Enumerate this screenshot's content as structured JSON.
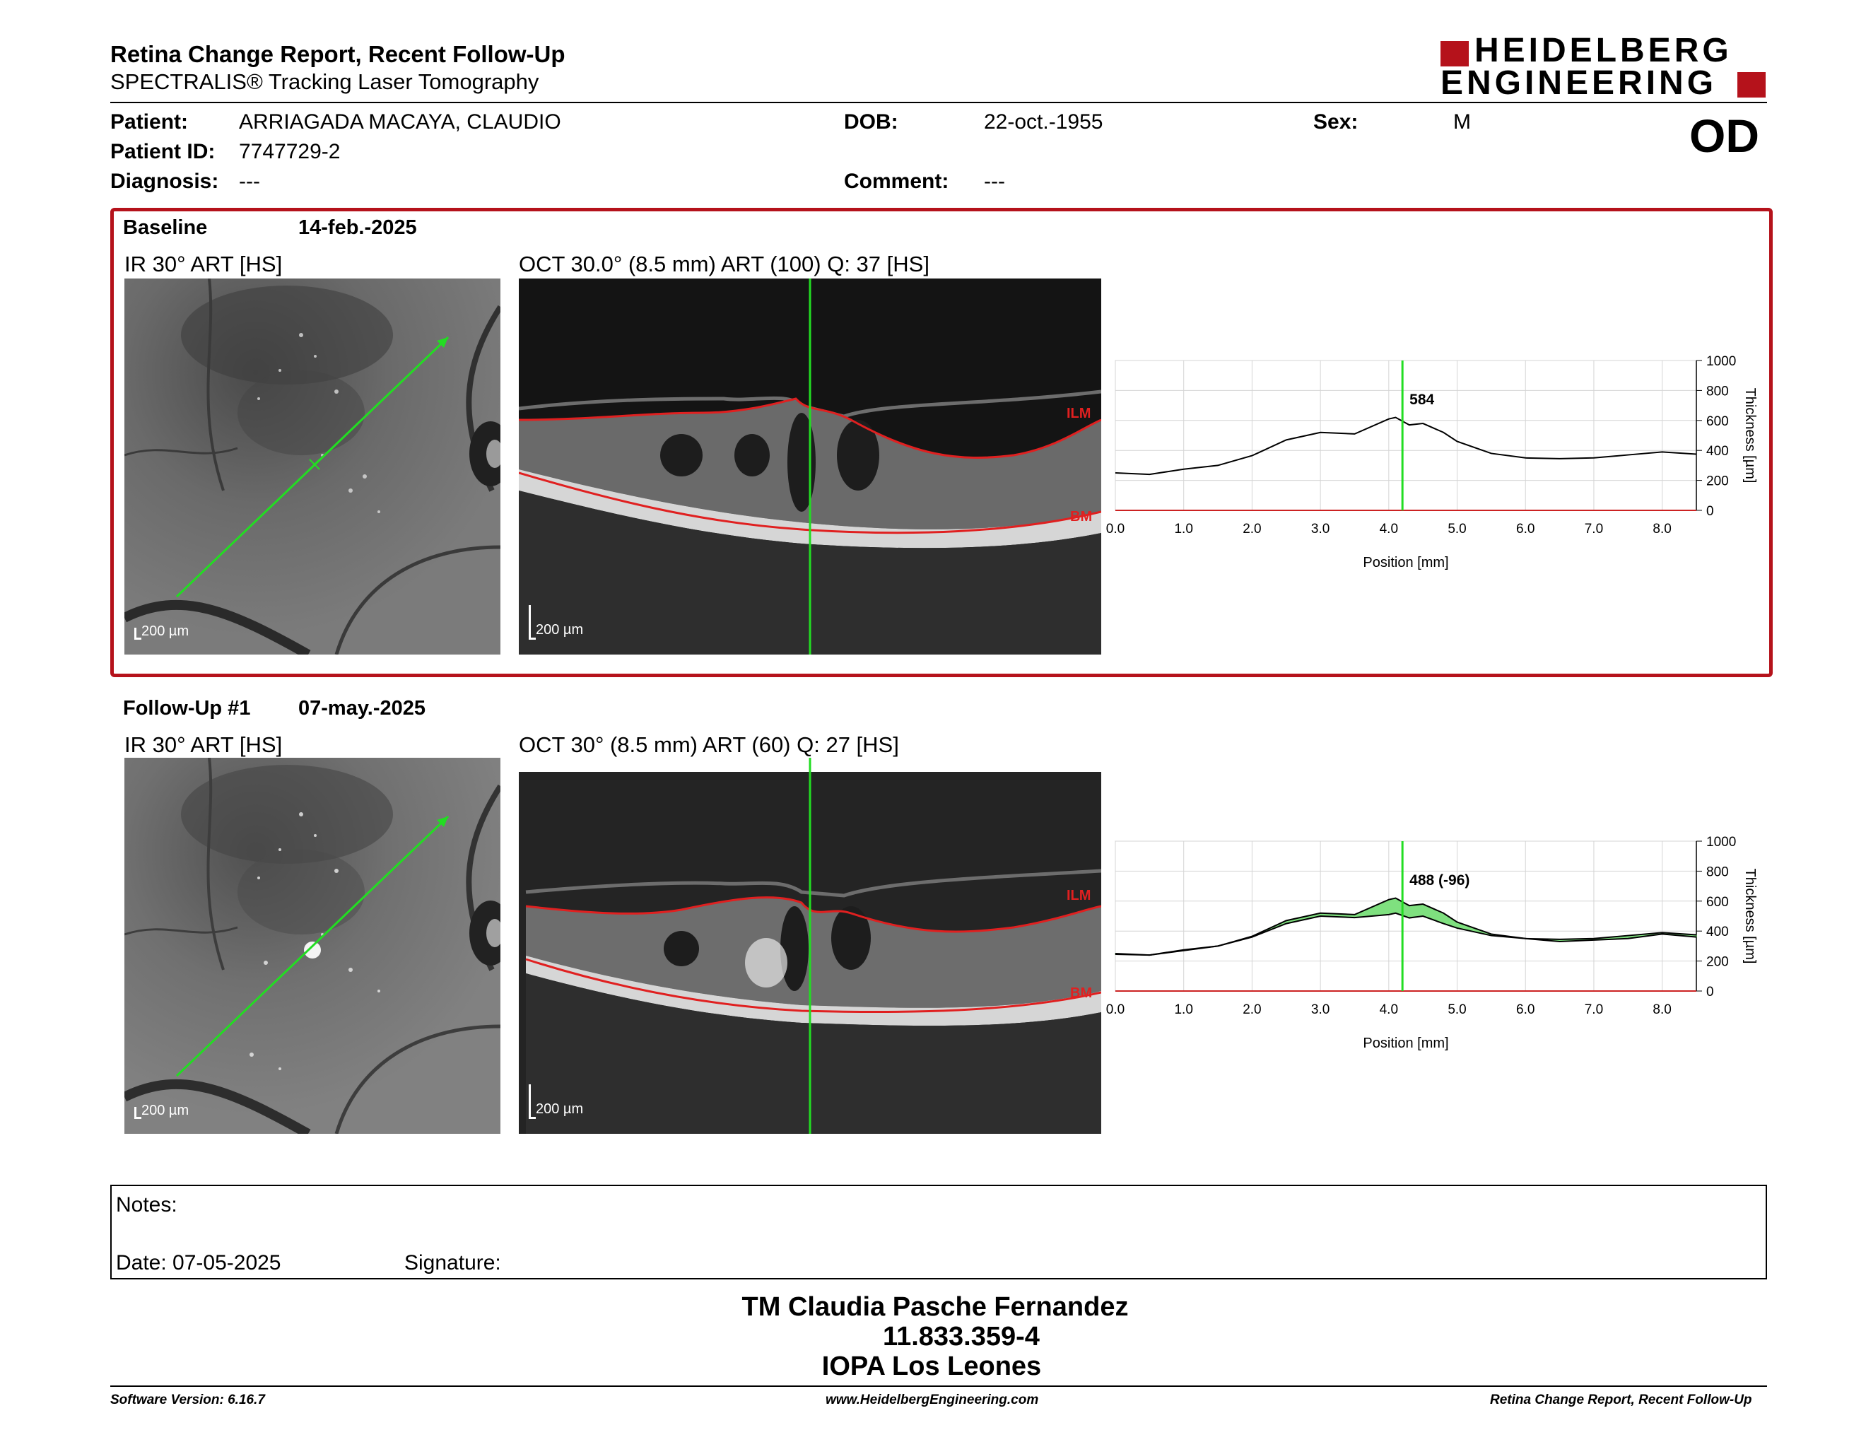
{
  "header": {
    "title": "Retina Change Report, Recent Follow-Up",
    "subtitle": "SPECTRALIS® Tracking Laser Tomography",
    "logo_line1": "HEIDELBERG",
    "logo_line2": "ENGINEERING",
    "eye": "OD"
  },
  "patient": {
    "name_label": "Patient:",
    "name": "ARRIAGADA MACAYA, CLAUDIO",
    "id_label": "Patient ID:",
    "id": "7747729-2",
    "diagnosis_label": "Diagnosis:",
    "diagnosis": "---",
    "dob_label": "DOB:",
    "dob": "22-oct.-1955",
    "comment_label": "Comment:",
    "comment": "---",
    "sex_label": "Sex:",
    "sex": "M"
  },
  "baseline": {
    "label": "Baseline",
    "date": "14-feb.-2025",
    "ir_title": "IR 30° ART [HS]",
    "oct_title": "OCT 30.0° (8.5 mm) ART (100) Q: 37 [HS]",
    "ir_scale": "200 µm",
    "oct_scale": "200 µm",
    "ilm": "ILM",
    "bm": "BM"
  },
  "followup": {
    "label": "Follow-Up #1",
    "date": "07-may.-2025",
    "ir_title": "IR 30° ART [HS]",
    "oct_title": "OCT 30° (8.5 mm) ART (60) Q: 27 [HS]",
    "ir_scale": "200 µm",
    "oct_scale": "200 µm",
    "ilm": "ILM",
    "bm": "BM"
  },
  "notes": {
    "notes_label": "Notes:",
    "date_label": "Date: 07-05-2025",
    "signature_label": "Signature:"
  },
  "signature_block": {
    "line1": "TM Claudia Pasche Fernandez",
    "line2": "11.833.359-4",
    "line3": "IOPA Los Leones"
  },
  "footer": {
    "software": "Software Version: 6.16.7",
    "website": "www.HeidelbergEngineering.com",
    "report": "Retina Change Report, Recent Follow-Up"
  },
  "colors": {
    "brand_red": "#b5121b",
    "marker_green": "#22dd22",
    "difference_fill": "#7fe07f",
    "layer_red": "#e02020"
  },
  "chart_data": [
    {
      "type": "line",
      "title": "",
      "xlabel": "Position [mm]",
      "ylabel": "Thickness [µm]",
      "xlim": [
        0.0,
        8.5
      ],
      "ylim": [
        0,
        1000
      ],
      "x_ticks": [
        "0.0",
        "1.0",
        "2.0",
        "3.0",
        "4.0",
        "5.0",
        "6.0",
        "7.0",
        "8.0"
      ],
      "y_ticks": [
        "0",
        "200",
        "400",
        "600",
        "800",
        "1000"
      ],
      "grid": true,
      "marker_x": 4.2,
      "marker_label": "584",
      "series": [
        {
          "x": [
            0.0,
            0.5,
            1.0,
            1.5,
            2.0,
            2.5,
            3.0,
            3.5,
            4.0,
            4.1,
            4.3,
            4.5,
            4.8,
            5.0,
            5.5,
            6.0,
            6.5,
            7.0,
            7.5,
            8.0,
            8.5
          ],
          "values": [
            250,
            240,
            275,
            300,
            365,
            470,
            520,
            510,
            610,
            620,
            570,
            580,
            520,
            460,
            380,
            350,
            345,
            350,
            370,
            390,
            375
          ]
        }
      ]
    },
    {
      "type": "area",
      "title": "",
      "xlabel": "Position [mm]",
      "ylabel": "Thickness [µm]",
      "xlim": [
        0.0,
        8.5
      ],
      "ylim": [
        0,
        1000
      ],
      "x_ticks": [
        "0.0",
        "1.0",
        "2.0",
        "3.0",
        "4.0",
        "5.0",
        "6.0",
        "7.0",
        "8.0"
      ],
      "y_ticks": [
        "0",
        "200",
        "400",
        "600",
        "800",
        "1000"
      ],
      "grid": true,
      "marker_x": 4.2,
      "marker_label": "488 (-96)",
      "series": [
        {
          "x": [
            0.0,
            0.5,
            1.0,
            1.5,
            2.0,
            2.5,
            3.0,
            3.5,
            4.0,
            4.1,
            4.3,
            4.5,
            4.8,
            5.0,
            5.5,
            6.0,
            6.5,
            7.0,
            7.5,
            8.0,
            8.5
          ],
          "values": [
            250,
            240,
            275,
            300,
            365,
            470,
            520,
            510,
            610,
            620,
            570,
            580,
            520,
            460,
            380,
            350,
            345,
            350,
            370,
            390,
            375
          ]
        },
        {
          "x": [
            0.0,
            0.5,
            1.0,
            1.5,
            2.0,
            2.5,
            3.0,
            3.5,
            4.0,
            4.1,
            4.3,
            4.5,
            4.8,
            5.0,
            5.5,
            6.0,
            6.5,
            7.0,
            7.5,
            8.0,
            8.5
          ],
          "values": [
            245,
            240,
            270,
            300,
            360,
            450,
            500,
            490,
            510,
            520,
            488,
            500,
            450,
            420,
            370,
            350,
            330,
            340,
            350,
            380,
            360
          ]
        }
      ]
    }
  ]
}
